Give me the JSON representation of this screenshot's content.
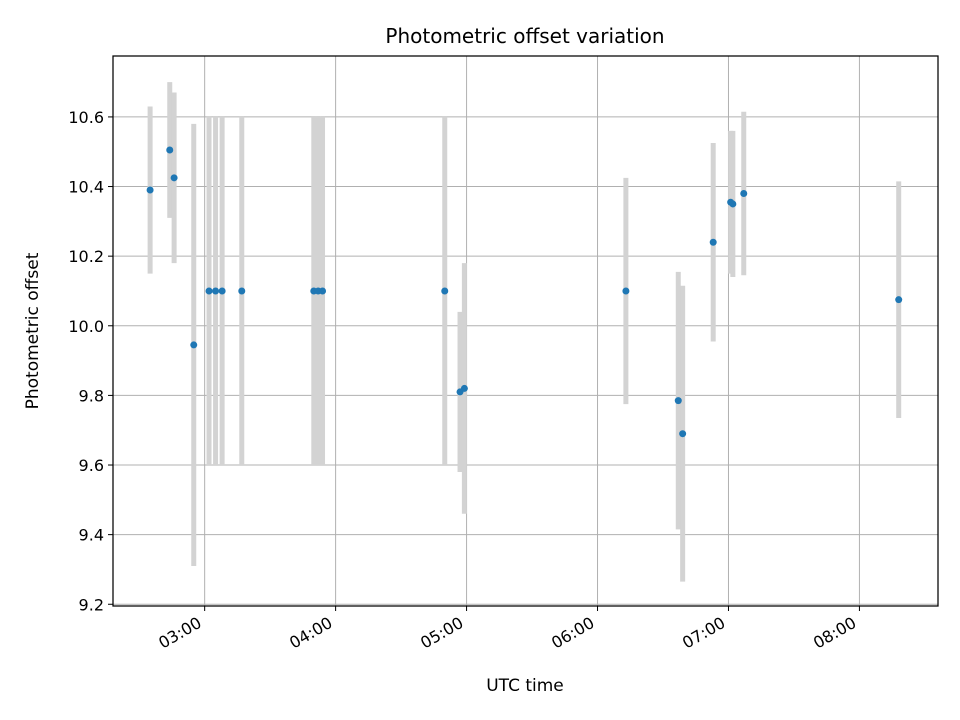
{
  "chart_data": {
    "type": "scatter",
    "title": "Photometric offset variation",
    "xlabel": "UTC time",
    "ylabel": "Photometric offset",
    "xlim": [
      "02:18",
      "08:36"
    ],
    "ylim": [
      9.195,
      10.775
    ],
    "grid": true,
    "xticks": [
      "03:00",
      "04:00",
      "05:00",
      "06:00",
      "07:00",
      "08:00"
    ],
    "yticks": [
      9.2,
      9.4,
      9.6,
      9.8,
      10.0,
      10.2,
      10.4,
      10.6
    ],
    "colors": {
      "point": "#1f77b4",
      "errorbar": "#d3d3d3",
      "grid": "#b0b0b0"
    },
    "points": [
      {
        "x": "02:35",
        "y": 10.39,
        "err": 0.24
      },
      {
        "x": "02:44",
        "y": 10.505,
        "err": 0.195
      },
      {
        "x": "02:46",
        "y": 10.425,
        "err": 0.245
      },
      {
        "x": "02:55",
        "y": 9.945,
        "err": 0.635
      },
      {
        "x": "03:02",
        "y": 10.1,
        "err": 0.5
      },
      {
        "x": "03:05",
        "y": 10.1,
        "err": 0.5
      },
      {
        "x": "03:08",
        "y": 10.1,
        "err": 0.5
      },
      {
        "x": "03:17",
        "y": 10.1,
        "err": 0.5
      },
      {
        "x": "03:50",
        "y": 10.1,
        "err": 0.5
      },
      {
        "x": "03:52",
        "y": 10.1,
        "err": 0.5
      },
      {
        "x": "03:54",
        "y": 10.1,
        "err": 0.5
      },
      {
        "x": "04:50",
        "y": 10.1,
        "err": 0.5
      },
      {
        "x": "04:57",
        "y": 9.81,
        "err": 0.23
      },
      {
        "x": "04:59",
        "y": 9.82,
        "err": 0.36
      },
      {
        "x": "06:13",
        "y": 10.1,
        "err": 0.325
      },
      {
        "x": "06:37",
        "y": 9.785,
        "err": 0.37
      },
      {
        "x": "06:39",
        "y": 9.69,
        "err": 0.425
      },
      {
        "x": "06:53",
        "y": 10.24,
        "err": 0.285
      },
      {
        "x": "07:01",
        "y": 10.355,
        "err": 0.205
      },
      {
        "x": "07:02",
        "y": 10.35,
        "err": 0.21
      },
      {
        "x": "07:07",
        "y": 10.38,
        "err": 0.235
      },
      {
        "x": "08:18",
        "y": 10.075,
        "err": 0.34
      }
    ]
  }
}
